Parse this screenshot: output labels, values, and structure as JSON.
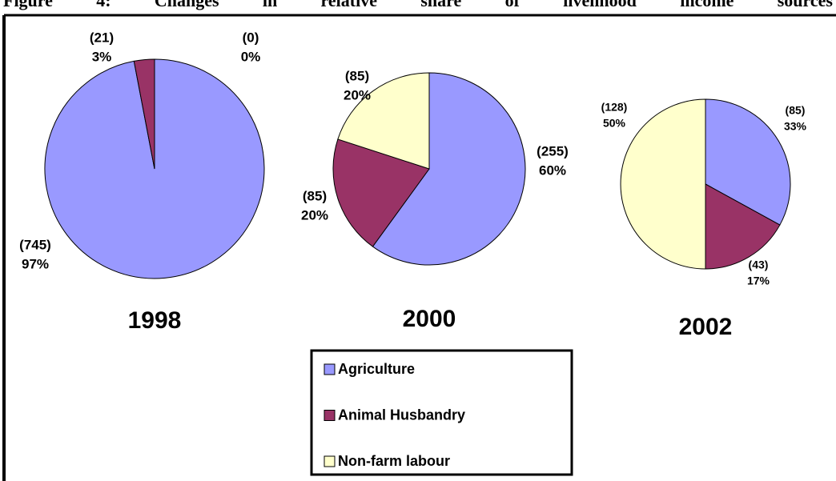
{
  "caption": "Figure 4: Changes in relative share of livelihood income sources",
  "legend": {
    "labels": [
      "Agriculture",
      "Animal Husbandry",
      "Non-farm labour"
    ],
    "colors": [
      "#9999ff",
      "#993366",
      "#ffffcc"
    ]
  },
  "chart_data": [
    {
      "type": "pie",
      "title": "1998",
      "values": [
        97,
        3,
        0
      ],
      "value_labels": [
        "97%",
        "3%",
        "0%"
      ],
      "counts": [
        745,
        21,
        0
      ],
      "count_labels": [
        "(745)",
        "(21)",
        "(0)"
      ]
    },
    {
      "type": "pie",
      "title": "2000",
      "values": [
        60,
        20,
        20
      ],
      "value_labels": [
        "60%",
        "20%",
        "20%"
      ],
      "counts": [
        255,
        85,
        85
      ],
      "count_labels": [
        "(255)",
        "(85)",
        "(85)"
      ]
    },
    {
      "type": "pie",
      "title": "2002",
      "values": [
        33,
        17,
        50
      ],
      "value_labels": [
        "33%",
        "17%",
        "50%"
      ],
      "counts": [
        85,
        43,
        128
      ],
      "count_labels": [
        "(85)",
        "(43)",
        "(128)"
      ]
    }
  ]
}
